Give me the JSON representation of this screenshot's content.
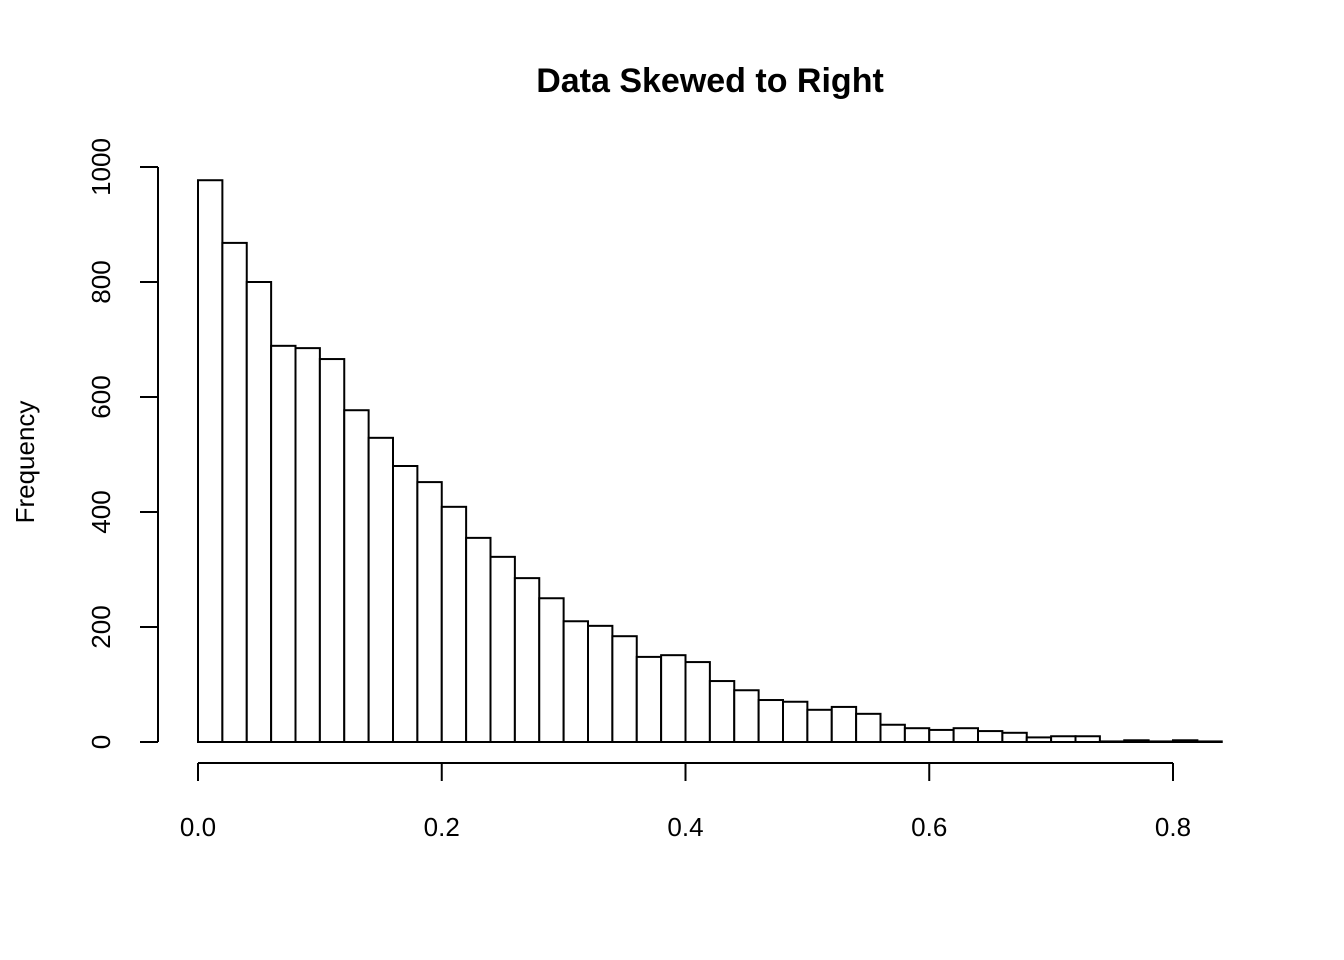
{
  "chart_data": {
    "type": "bar",
    "title": "Data Skewed to Right",
    "xlabel": "",
    "ylabel": "Frequency",
    "bin_width": 0.02,
    "bin_start": 0.0,
    "values": [
      977,
      868,
      800,
      689,
      685,
      666,
      577,
      529,
      480,
      452,
      409,
      355,
      322,
      285,
      250,
      210,
      202,
      184,
      148,
      151,
      139,
      106,
      90,
      73,
      70,
      56,
      61,
      49,
      30,
      24,
      21,
      24,
      19,
      16,
      8,
      10,
      10,
      1,
      3,
      1,
      3,
      1
    ],
    "xlim": [
      0,
      0.84
    ],
    "ylim": [
      0,
      1000
    ],
    "xticks": [
      "0.0",
      "0.2",
      "0.4",
      "0.6",
      "0.8"
    ],
    "xtick_values": [
      0,
      0.2,
      0.4,
      0.6,
      0.8
    ],
    "yticks": [
      "0",
      "200",
      "400",
      "600",
      "800",
      "1000"
    ],
    "ytick_values": [
      0,
      200,
      400,
      600,
      800,
      1000
    ],
    "grid": false,
    "bar_fill": "#ffffff",
    "bar_stroke": "#000000"
  }
}
